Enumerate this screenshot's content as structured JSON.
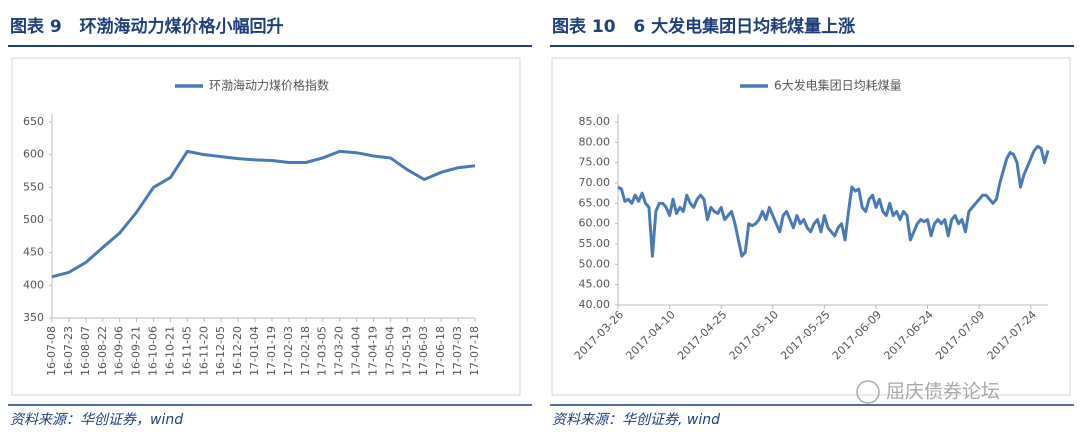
{
  "watermark": "屈庆债券论坛",
  "chart_data": [
    {
      "type": "line",
      "title": "图表 9   环渤海动力煤价格小幅回升",
      "source": "资料来源：华创证券，wind",
      "categories": [
        "16-07-08",
        "16-07-23",
        "16-08-07",
        "16-08-22",
        "16-09-06",
        "16-09-21",
        "16-10-06",
        "16-10-21",
        "16-11-05",
        "16-11-20",
        "16-12-05",
        "16-12-20",
        "17-01-04",
        "17-01-19",
        "17-02-03",
        "17-02-18",
        "17-03-05",
        "17-03-20",
        "17-04-04",
        "17-04-19",
        "17-05-04",
        "17-05-19",
        "17-06-03",
        "17-06-18",
        "17-07-03",
        "17-07-18"
      ],
      "series": [
        {
          "name": "环渤海动力煤价格指数",
          "color": "#4a7ab5",
          "values": [
            413,
            420,
            435,
            458,
            480,
            512,
            550,
            565,
            605,
            600,
            597,
            594,
            592,
            591,
            588,
            588,
            595,
            605,
            603,
            598,
            595,
            577,
            562,
            573,
            580,
            583
          ]
        }
      ],
      "ylim": [
        350,
        650
      ],
      "yticks": [
        350,
        400,
        450,
        500,
        550,
        600,
        650
      ],
      "legend": "top"
    },
    {
      "type": "line",
      "title": "图表 10   6 大发电集团日均耗煤量上涨",
      "source": "资料来源：华创证券, wind",
      "categories": [
        "2017-03-26",
        null,
        null,
        null,
        null,
        null,
        null,
        null,
        null,
        null,
        null,
        null,
        null,
        null,
        null,
        "2017-04-10",
        null,
        null,
        null,
        null,
        null,
        null,
        null,
        null,
        null,
        null,
        null,
        null,
        null,
        null,
        "2017-04-25",
        null,
        null,
        null,
        null,
        null,
        null,
        null,
        null,
        null,
        null,
        null,
        null,
        null,
        null,
        "2017-05-10",
        null,
        null,
        null,
        null,
        null,
        null,
        null,
        null,
        null,
        null,
        null,
        null,
        null,
        null,
        "2017-05-25",
        null,
        null,
        null,
        null,
        null,
        null,
        null,
        null,
        null,
        null,
        null,
        null,
        null,
        null,
        "2017-06-09",
        null,
        null,
        null,
        null,
        null,
        null,
        null,
        null,
        null,
        null,
        null,
        null,
        null,
        null,
        "2017-06-24",
        null,
        null,
        null,
        null,
        null,
        null,
        null,
        null,
        null,
        null,
        null,
        null,
        null,
        null,
        "2017-07-09",
        null,
        null,
        null,
        null,
        null,
        null,
        null,
        null,
        null,
        null,
        null,
        null,
        null,
        null,
        "2017-07-24",
        null,
        null,
        null,
        null,
        null
      ],
      "series": [
        {
          "name": "6大发电集团日均耗煤量",
          "color": "#4a7ab5",
          "values": [
            69,
            68.5,
            65.5,
            66,
            65,
            67,
            65.5,
            67.5,
            65,
            64,
            52,
            63,
            65,
            65,
            64,
            62,
            66,
            62.5,
            64,
            63,
            67,
            65,
            64,
            66,
            67,
            66,
            61,
            64,
            63,
            62.5,
            64,
            61,
            62,
            63,
            60,
            56,
            52,
            53,
            60,
            59.5,
            60,
            61,
            63,
            61,
            64,
            62,
            60,
            58,
            62,
            63,
            61,
            59,
            62,
            60,
            61,
            59,
            58,
            60,
            61,
            58,
            62,
            59,
            58,
            57,
            59,
            60,
            56,
            63,
            69,
            68,
            68.5,
            64,
            63,
            66,
            67,
            64,
            66,
            63,
            62,
            65,
            62,
            63,
            61,
            63,
            62,
            56,
            58,
            60,
            61,
            60.5,
            61,
            57,
            60,
            61,
            60,
            61,
            57,
            61,
            62,
            60,
            61,
            58,
            63,
            64,
            65,
            66,
            67,
            67,
            66,
            65,
            66,
            70,
            73,
            76,
            77.5,
            77,
            75,
            69,
            72,
            74,
            76,
            78,
            79,
            78.5,
            75,
            78
          ]
        }
      ],
      "ylim": [
        40,
        85
      ],
      "yticks": [
        {
          "value": 40,
          "label": "40.00"
        },
        {
          "value": 45,
          "label": "45.00"
        },
        {
          "value": 50,
          "label": "50.00"
        },
        {
          "value": 55,
          "label": "55.00"
        },
        {
          "value": 60,
          "label": "60.00"
        },
        {
          "value": 65,
          "label": "65.00"
        },
        {
          "value": 70,
          "label": "70.00"
        },
        {
          "value": 75,
          "label": "75.00"
        },
        {
          "value": 80,
          "label": "80.00"
        },
        {
          "value": 85,
          "label": "85.00"
        }
      ],
      "legend": "top"
    }
  ]
}
